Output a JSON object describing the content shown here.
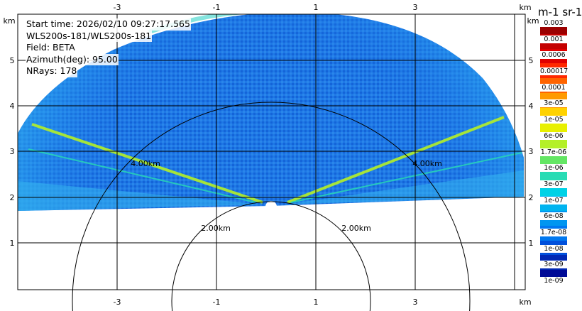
{
  "info": {
    "start_time": "Start time: 2026/02/10 09:27:17.565",
    "station": "WLS200s-181/WLS200s-181",
    "field": "Field: BETA",
    "azimuth": "Azimuth(deg): 95.00",
    "nrays": "NRays: 178"
  },
  "units_label": "m-1 sr-1",
  "axes": {
    "x_unit": "km",
    "y_unit": "km",
    "x_ticks": [
      "-3",
      "-1",
      "1",
      "3"
    ],
    "y_ticks": [
      "1",
      "2",
      "3",
      "4",
      "5"
    ]
  },
  "range_rings": [
    "2.00km",
    "2.00km",
    "4.00km",
    "4.00km"
  ],
  "colorbar": {
    "labels": [
      "0.003",
      "0.001",
      "0.0006",
      "0.00017",
      "0.0001",
      "3e-05",
      "1e-05",
      "6e-06",
      "1.7e-06",
      "1e-06",
      "3e-07",
      "1e-07",
      "6e-08",
      "1.7e-08",
      "1e-08",
      "3e-09",
      "1e-09"
    ],
    "colors": [
      "#9b0000",
      "#c40000",
      "#e00000",
      "#ff2800",
      "#ff6400",
      "#ff9a00",
      "#ffd200",
      "#e8f000",
      "#b4f028",
      "#64e664",
      "#28dcb4",
      "#00d2e6",
      "#00b4f0",
      "#0096f0",
      "#0078f0",
      "#0050dc",
      "#0028b4",
      "#000a96"
    ]
  },
  "colors": {
    "background": "#ffffff",
    "grid": "#000000",
    "dominant_echo": "#1e6ee6"
  }
}
